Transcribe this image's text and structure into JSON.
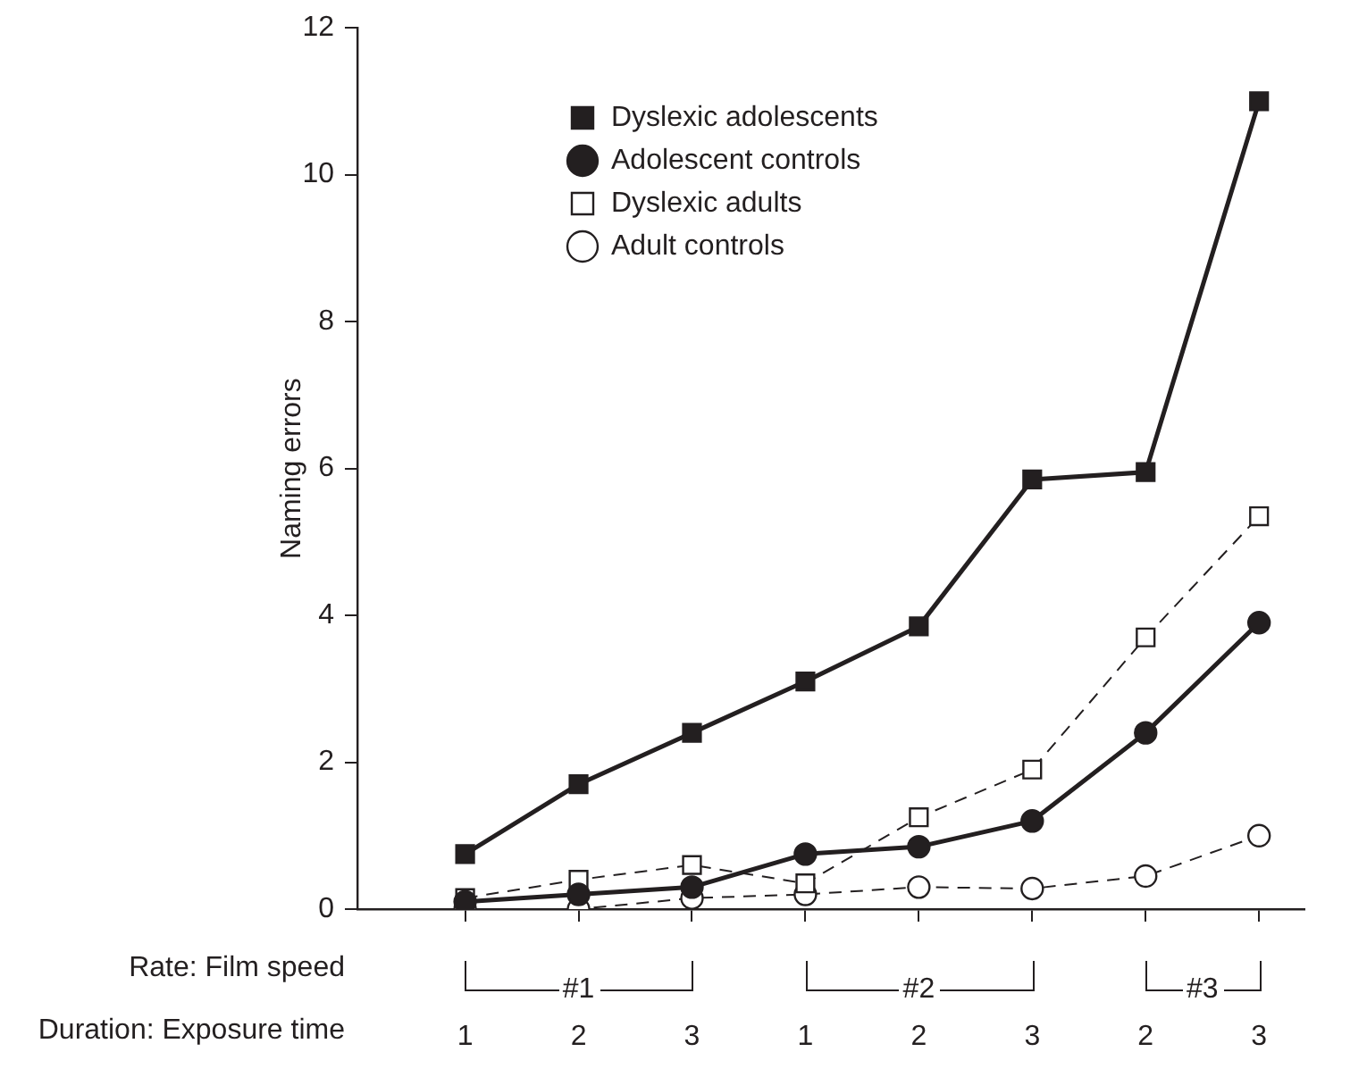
{
  "chart_data": {
    "type": "line",
    "ylabel": "Naming errors",
    "categories": [
      "1",
      "2",
      "3",
      "1",
      "2",
      "3",
      "2",
      "3"
    ],
    "ylim": [
      0,
      12
    ],
    "yticks": [
      0,
      2,
      4,
      6,
      8,
      10,
      12
    ],
    "grid": false,
    "legend": "top left",
    "annotations": [
      "Rate: Film speed",
      "Duration: Exposure time",
      "#1",
      "#2",
      "#3"
    ],
    "series": [
      {
        "name": "Dyslexic adolescents",
        "color": "#231f20",
        "marker": "square",
        "line_style": "solid",
        "values": [
          0.75,
          1.7,
          2.4,
          3.1,
          3.85,
          5.85,
          5.95,
          11.0
        ]
      },
      {
        "name": "Adolescent controls",
        "color": "#231f20",
        "marker": "circle",
        "line_style": "solid",
        "values": [
          0.1,
          0.2,
          0.3,
          0.75,
          0.85,
          1.2,
          2.4,
          3.9
        ]
      },
      {
        "name": "Dyslexic adults",
        "color": "#231f20",
        "marker": "square",
        "line_style": "dashed",
        "values": [
          0.15,
          0.4,
          0.6,
          0.35,
          1.25,
          1.9,
          3.7,
          5.35
        ]
      },
      {
        "name": "Adult controls",
        "color": "#231f20",
        "marker": "circle",
        "line_style": "dashed",
        "values": [
          0,
          0,
          0.15,
          0.2,
          0.3,
          0.28,
          0.45,
          1.0
        ]
      }
    ]
  }
}
